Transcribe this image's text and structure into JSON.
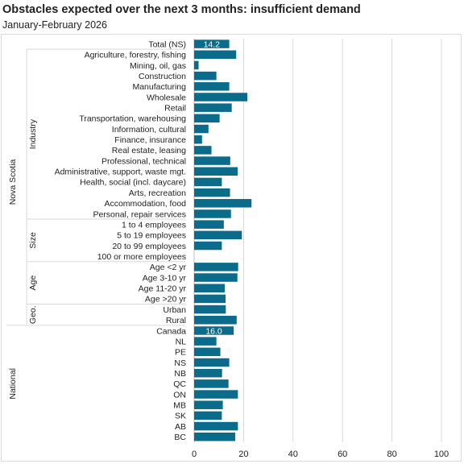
{
  "chart_data": {
    "type": "bar",
    "orientation": "horizontal",
    "title": "Obstacles expected over the next 3 months:  insufficient demand",
    "subtitle": "January-February  2026",
    "bar_color": "#0b6b8a",
    "gridlines": true,
    "xlim": [
      0,
      100
    ],
    "xticks": [
      0,
      20,
      40,
      60,
      80,
      100
    ],
    "categories": [
      "Total (NS)",
      "Agriculture, forestry, fishing",
      "Mining, oil, gas",
      "Construction",
      "Manufacturing",
      "Wholesale",
      "Retail",
      "Transportation, warehousing",
      "Information, cultural",
      "Finance, insurance",
      "Real estate, leasing",
      "Professional, technical",
      "Administrative, support, waste mgt.",
      "Health, social (incl. daycare)",
      "Arts, recreation",
      "Accommodation, food",
      "Personal, repair services",
      "1 to 4 employees",
      "5 to 19 employees",
      "20 to 99 employees",
      "100 or more employees",
      "Age <2 yr",
      "Age 3-10 yr",
      "Age 11-20 yr",
      "Age >20 yr",
      "Urban",
      "Rural",
      "Canada",
      "NL",
      "PE",
      "NS",
      "NB",
      "QC",
      "ON",
      "MB",
      "SK",
      "AB",
      "BC"
    ],
    "values": [
      14.2,
      17.0,
      1.8,
      9.0,
      14.2,
      21.5,
      15.2,
      10.3,
      5.8,
      3.2,
      7.0,
      14.6,
      17.6,
      11.2,
      14.5,
      23.2,
      14.9,
      12.0,
      19.3,
      11.2,
      null,
      17.8,
      17.5,
      12.4,
      12.7,
      12.8,
      17.2,
      16.0,
      9.0,
      10.6,
      14.2,
      11.3,
      13.9,
      17.7,
      11.6,
      11.2,
      17.7,
      16.6
    ],
    "data_labels": {
      "Total (NS)": "14.2",
      "Canada": "16.0"
    },
    "groups": {
      "outer": [
        {
          "label": "Nova Scotia",
          "from": 0,
          "to": 26
        },
        {
          "label": "National",
          "from": 27,
          "to": 37
        }
      ],
      "inner": [
        {
          "label": "Industry",
          "from": 1,
          "to": 16
        },
        {
          "label": "Size",
          "from": 17,
          "to": 20
        },
        {
          "label": "Age",
          "from": 21,
          "to": 24
        },
        {
          "label": "Geo.",
          "from": 25,
          "to": 26
        }
      ]
    }
  }
}
